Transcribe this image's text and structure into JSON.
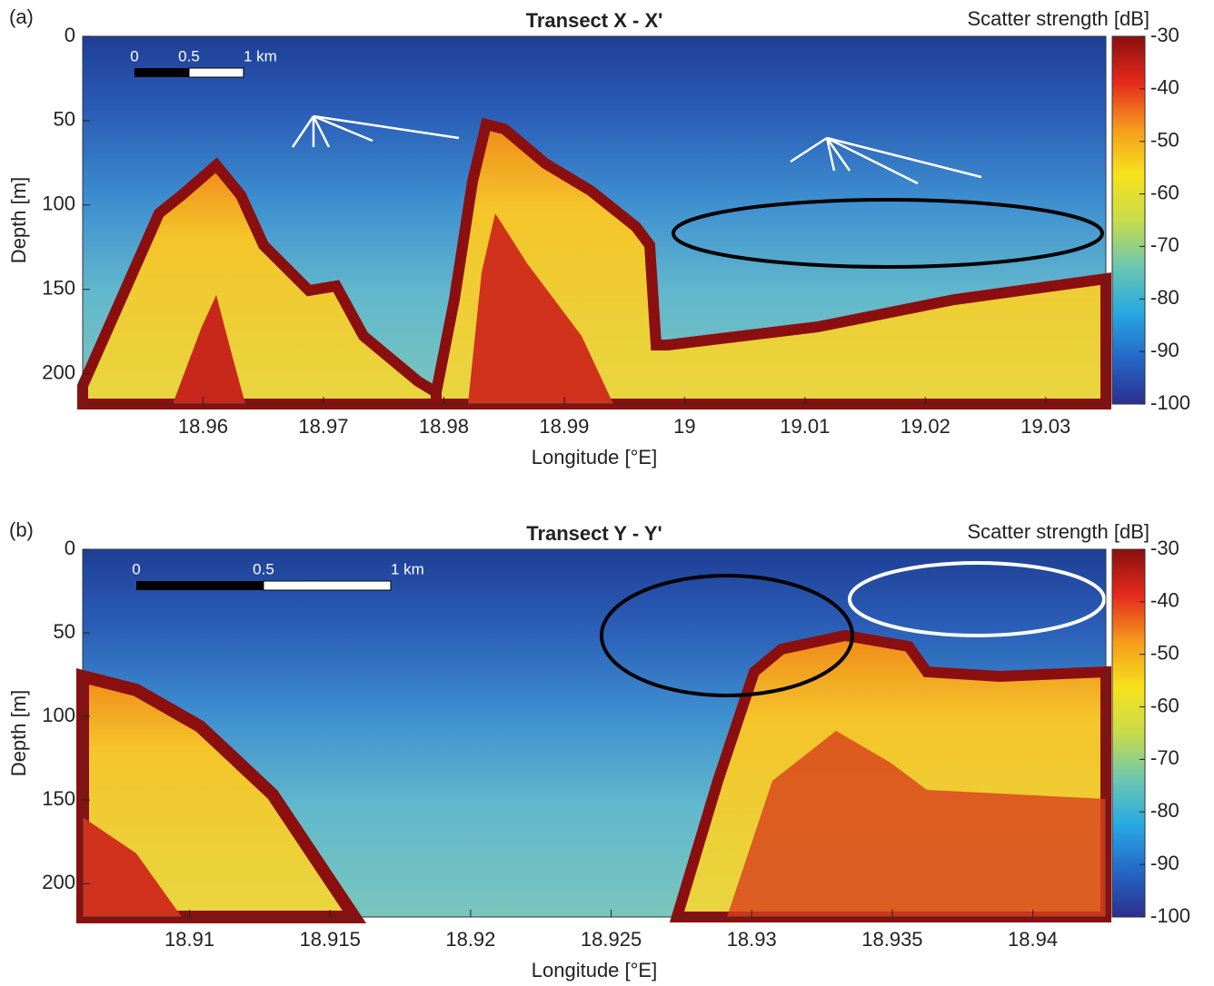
{
  "chart_data": [
    {
      "type": "echogram",
      "panel_label": "(a)",
      "title": "Transect X - X'",
      "xlabel": "Longitude [°E]",
      "ylabel": "Depth [m]",
      "colorbar_label": "Scatter strength [dB]",
      "xlim": [
        18.95,
        19.035
      ],
      "xticks": [
        18.96,
        18.97,
        18.98,
        18.99,
        19,
        19.01,
        19.02,
        19.03
      ],
      "ylim": [
        0,
        218
      ],
      "yticks": [
        0,
        50,
        100,
        150,
        200
      ],
      "y_reversed": true,
      "clim": [
        -100,
        -30
      ],
      "cticks": [
        -30,
        -40,
        -50,
        -60,
        -70,
        -80,
        -90,
        -100
      ],
      "colormap": [
        "#2b2f8f",
        "#2468c8",
        "#27a9e1",
        "#6cc7b0",
        "#c8dc4a",
        "#f7e21b",
        "#f59a1c",
        "#e52a1c",
        "#8b0f0f"
      ],
      "scale_bar_labels": [
        "0",
        "0.5",
        "1 km"
      ]
    },
    {
      "type": "echogram",
      "panel_label": "(b)",
      "title": "Transect Y - Y'",
      "xlabel": "Longitude [°E]",
      "ylabel": "Depth [m]",
      "colorbar_label": "Scatter strength [dB]",
      "xlim": [
        18.9062,
        18.9426
      ],
      "xticks": [
        18.91,
        18.915,
        18.92,
        18.925,
        18.93,
        18.935,
        18.94
      ],
      "ylim": [
        0,
        220
      ],
      "yticks": [
        0,
        50,
        100,
        150,
        200
      ],
      "y_reversed": true,
      "clim": [
        -100,
        -30
      ],
      "cticks": [
        -30,
        -40,
        -50,
        -60,
        -70,
        -80,
        -90,
        -100
      ],
      "colormap": [
        "#2b2f8f",
        "#2468c8",
        "#27a9e1",
        "#6cc7b0",
        "#c8dc4a",
        "#f7e21b",
        "#f59a1c",
        "#e52a1c",
        "#8b0f0f"
      ],
      "scale_bar_labels": [
        "0",
        "0.5",
        "1 km"
      ]
    }
  ]
}
